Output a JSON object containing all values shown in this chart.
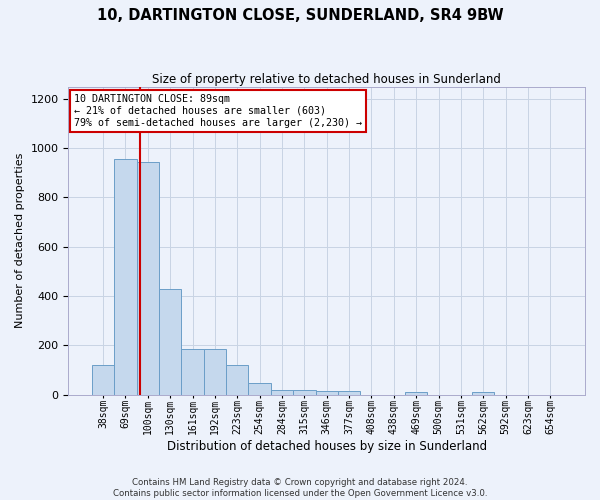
{
  "title": "10, DARTINGTON CLOSE, SUNDERLAND, SR4 9BW",
  "subtitle": "Size of property relative to detached houses in Sunderland",
  "xlabel": "Distribution of detached houses by size in Sunderland",
  "ylabel": "Number of detached properties",
  "footer_line1": "Contains HM Land Registry data © Crown copyright and database right 2024.",
  "footer_line2": "Contains public sector information licensed under the Open Government Licence v3.0.",
  "categories": [
    "38sqm",
    "69sqm",
    "100sqm",
    "130sqm",
    "161sqm",
    "192sqm",
    "223sqm",
    "254sqm",
    "284sqm",
    "315sqm",
    "346sqm",
    "377sqm",
    "408sqm",
    "438sqm",
    "469sqm",
    "500sqm",
    "531sqm",
    "562sqm",
    "592sqm",
    "623sqm",
    "654sqm"
  ],
  "values": [
    120,
    955,
    945,
    430,
    185,
    185,
    120,
    45,
    20,
    20,
    15,
    15,
    0,
    0,
    10,
    0,
    0,
    10,
    0,
    0,
    0
  ],
  "bar_color": "#c5d8ed",
  "bar_edge_color": "#6b9ec8",
  "grid_color": "#c8d4e4",
  "bg_color": "#edf2fb",
  "annotation_text": "10 DARTINGTON CLOSE: 89sqm\n← 21% of detached houses are smaller (603)\n79% of semi-detached houses are larger (2,230) →",
  "red_line_x": 1.65,
  "annotation_box_color": "white",
  "annotation_border_color": "#cc0000",
  "red_line_color": "#cc0000",
  "ylim": [
    0,
    1250
  ],
  "yticks": [
    0,
    200,
    400,
    600,
    800,
    1000,
    1200
  ]
}
